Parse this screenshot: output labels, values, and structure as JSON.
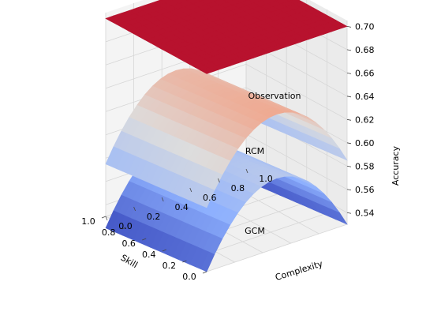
{
  "chart_data": {
    "type": "surface3d",
    "title": "",
    "xlabel": "Skill",
    "ylabel": "Complexity",
    "zlabel": "Accuracy",
    "xlim": [
      0.0,
      1.0
    ],
    "ylim": [
      0.0,
      1.0
    ],
    "zlim": [
      0.53,
      0.705
    ],
    "x_ticks": [
      "0.0",
      "0.2",
      "0.4",
      "0.6",
      "0.8",
      "1.0"
    ],
    "y_ticks": [
      "0.0",
      "0.2",
      "0.4",
      "0.6",
      "0.8",
      "1.0"
    ],
    "z_ticks": [
      "0.54",
      "0.56",
      "0.58",
      "0.60",
      "0.62",
      "0.64",
      "0.66",
      "0.68",
      "0.70"
    ],
    "colormap": [
      "#3b4cc0",
      "#8db0fe",
      "#dddddd",
      "#f49a7b",
      "#b40426"
    ],
    "grid": true,
    "series": [
      {
        "name": "Observation",
        "shape": "flat",
        "level": 0.7,
        "color": "#b8122e"
      },
      {
        "name": "RCM",
        "shape": "parabolic",
        "peak": 0.645,
        "peak_complexity": 0.5,
        "edge_drop": 0.06,
        "skill_drop": 0.01
      },
      {
        "name": "GCM",
        "shape": "parabolic",
        "peak": 0.59,
        "peak_complexity": 0.5,
        "edge_drop": 0.06,
        "skill_drop": 0.01
      }
    ]
  }
}
